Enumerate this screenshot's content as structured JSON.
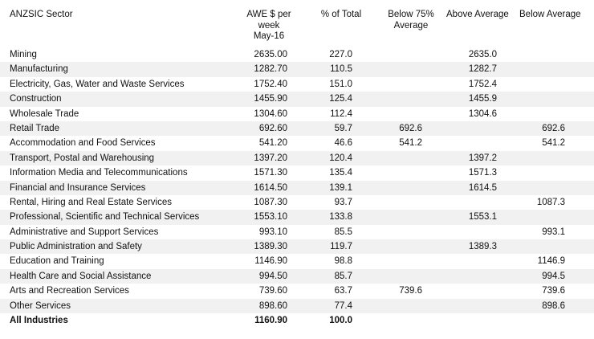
{
  "headers": {
    "sector": "ANZSIC Sector",
    "awe_line1": "AWE $ per",
    "awe_line2": "week",
    "awe_line3": "May-16",
    "pct_total": "% of Total",
    "below75_line1": "Below 75%",
    "below75_line2": "Average",
    "above_avg": "Above Average",
    "below_avg": "Below Average"
  },
  "rows": [
    {
      "sector": "Mining",
      "awe": "2635.00",
      "pct": "227.0",
      "below75": "",
      "above": "2635.0",
      "below": ""
    },
    {
      "sector": "Manufacturing",
      "awe": "1282.70",
      "pct": "110.5",
      "below75": "",
      "above": "1282.7",
      "below": ""
    },
    {
      "sector": "Electricity, Gas, Water and Waste Services",
      "awe": "1752.40",
      "pct": "151.0",
      "below75": "",
      "above": "1752.4",
      "below": ""
    },
    {
      "sector": "Construction",
      "awe": "1455.90",
      "pct": "125.4",
      "below75": "",
      "above": "1455.9",
      "below": ""
    },
    {
      "sector": "Wholesale Trade",
      "awe": "1304.60",
      "pct": "112.4",
      "below75": "",
      "above": "1304.6",
      "below": ""
    },
    {
      "sector": "Retail Trade",
      "awe": "692.60",
      "pct": "59.7",
      "below75": "692.6",
      "above": "",
      "below": "692.6"
    },
    {
      "sector": "Accommodation and Food Services",
      "awe": "541.20",
      "pct": "46.6",
      "below75": "541.2",
      "above": "",
      "below": "541.2"
    },
    {
      "sector": "Transport, Postal and Warehousing",
      "awe": "1397.20",
      "pct": "120.4",
      "below75": "",
      "above": "1397.2",
      "below": ""
    },
    {
      "sector": "Information Media and Telecommunications",
      "awe": "1571.30",
      "pct": "135.4",
      "below75": "",
      "above": "1571.3",
      "below": ""
    },
    {
      "sector": "Financial and Insurance Services",
      "awe": "1614.50",
      "pct": "139.1",
      "below75": "",
      "above": "1614.5",
      "below": ""
    },
    {
      "sector": "Rental, Hiring and Real Estate Services",
      "awe": "1087.30",
      "pct": "93.7",
      "below75": "",
      "above": "",
      "below": "1087.3"
    },
    {
      "sector": "Professional, Scientific and Technical Services",
      "awe": "1553.10",
      "pct": "133.8",
      "below75": "",
      "above": "1553.1",
      "below": ""
    },
    {
      "sector": "Administrative and Support Services",
      "awe": "993.10",
      "pct": "85.5",
      "below75": "",
      "above": "",
      "below": "993.1"
    },
    {
      "sector": "Public Administration and Safety",
      "awe": "1389.30",
      "pct": "119.7",
      "below75": "",
      "above": "1389.3",
      "below": ""
    },
    {
      "sector": "Education and Training",
      "awe": "1146.90",
      "pct": "98.8",
      "below75": "",
      "above": "",
      "below": "1146.9"
    },
    {
      "sector": "Health Care and Social Assistance",
      "awe": "994.50",
      "pct": "85.7",
      "below75": "",
      "above": "",
      "below": "994.5"
    },
    {
      "sector": "Arts and Recreation Services",
      "awe": "739.60",
      "pct": "63.7",
      "below75": "739.6",
      "above": "",
      "below": "739.6"
    },
    {
      "sector": "Other Services",
      "awe": "898.60",
      "pct": "77.4",
      "below75": "",
      "above": "",
      "below": "898.6"
    }
  ],
  "total": {
    "sector": "All Industries",
    "awe": "1160.90",
    "pct": "100.0"
  }
}
